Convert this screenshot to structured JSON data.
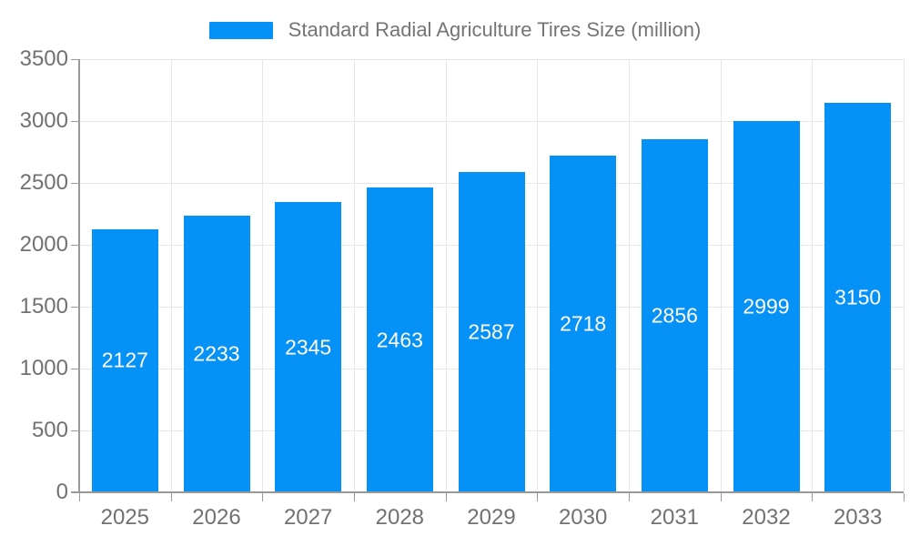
{
  "chart_data": {
    "type": "bar",
    "legend": "Standard Radial Agriculture Tires Size (million)",
    "legend_position": "top-center",
    "categories": [
      "2025",
      "2026",
      "2027",
      "2028",
      "2029",
      "2030",
      "2031",
      "2032",
      "2033"
    ],
    "values": [
      2127,
      2233,
      2345,
      2463,
      2587,
      2718,
      2856,
      2999,
      3150
    ],
    "ylim": [
      0,
      3500
    ],
    "y_step": 500,
    "grid": true,
    "colors": {
      "bar": "#0591f5",
      "bar_value_text": "#ffffff",
      "axis_text": "#717171",
      "legend_text": "#757575",
      "axis_line": "#999999",
      "gridline": "#e7e7e7",
      "background": "#ffffff"
    }
  }
}
